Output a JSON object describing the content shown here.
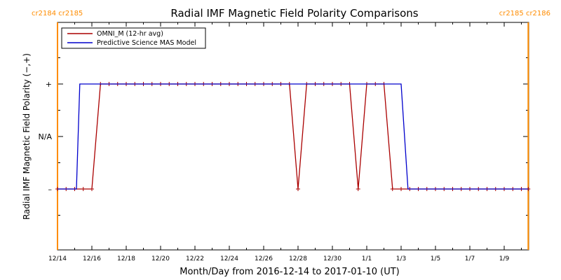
{
  "chart_data": {
    "type": "line",
    "title": "Radial IMF Magnetic Field Polarity Comparisons",
    "xlabel": "Month/Day from 2016-12-14 to 2017-01-10 (UT)",
    "ylabel": "Radial IMF Magnetic Field Polarity (−,+)",
    "x_unit": "days since 2016-12-14 00:00 UT",
    "xlim": [
      0,
      27.5
    ],
    "ylim": [
      -1.5,
      1.5
    ],
    "x_ticks": [
      {
        "x": 0,
        "label": "12/14"
      },
      {
        "x": 2,
        "label": "12/16"
      },
      {
        "x": 4,
        "label": "12/18"
      },
      {
        "x": 6,
        "label": "12/20"
      },
      {
        "x": 8,
        "label": "12/22"
      },
      {
        "x": 10,
        "label": "12/24"
      },
      {
        "x": 12,
        "label": "12/26"
      },
      {
        "x": 14,
        "label": "12/28"
      },
      {
        "x": 16,
        "label": "12/30"
      },
      {
        "x": 18,
        "label": "1/1"
      },
      {
        "x": 20,
        "label": "1/3"
      },
      {
        "x": 22,
        "label": "1/5"
      },
      {
        "x": 24,
        "label": "1/7"
      },
      {
        "x": 26,
        "label": "1/9"
      }
    ],
    "y_ticks": [
      {
        "y": 1,
        "label": "+"
      },
      {
        "y": 0,
        "label": "N/A"
      },
      {
        "y": -1,
        "label": "–"
      }
    ],
    "legend": {
      "position": "top-left",
      "entries": [
        {
          "label": "OMNI_M (12-hr avg)",
          "color": "#aa0000"
        },
        {
          "label": "Predictive Science MAS Model",
          "color": "#0000cc"
        }
      ]
    },
    "carrington_markers": [
      {
        "x": 0,
        "label": "cr2184 cr2185",
        "side": "left",
        "color": "#ff8c00"
      },
      {
        "x": 27.4,
        "label": "cr2185 cr2186",
        "side": "right",
        "color": "#ff8c00"
      }
    ],
    "series": [
      {
        "name": "OMNI_M (12-hr avg)",
        "color": "#aa0000",
        "markers": true,
        "x": [
          0,
          0.5,
          1.0,
          1.5,
          2.0,
          2.5,
          3.0,
          3.5,
          4.0,
          4.5,
          5.0,
          5.5,
          6.0,
          6.5,
          7.0,
          7.5,
          8.0,
          8.5,
          9.0,
          9.5,
          10.0,
          10.5,
          11.0,
          11.5,
          12.0,
          12.5,
          13.0,
          13.5,
          14.0,
          14.5,
          15.0,
          15.5,
          16.0,
          16.5,
          17.0,
          17.5,
          18.0,
          18.5,
          19.0,
          19.5,
          20.0,
          20.5,
          21.0,
          21.5,
          22.0,
          22.5,
          23.0,
          23.5,
          24.0,
          24.5,
          25.0,
          25.5,
          26.0,
          26.5,
          27.0,
          27.4
        ],
        "values": [
          -1,
          -1,
          -1,
          -1,
          -1,
          1,
          1,
          1,
          1,
          1,
          1,
          1,
          1,
          1,
          1,
          1,
          1,
          1,
          1,
          1,
          1,
          1,
          1,
          1,
          1,
          1,
          1,
          1,
          -1,
          1,
          1,
          1,
          1,
          1,
          1,
          -1,
          1,
          1,
          1,
          -1,
          -1,
          -1,
          -1,
          -1,
          -1,
          -1,
          -1,
          -1,
          -1,
          -1,
          -1,
          -1,
          -1,
          -1,
          -1,
          -1
        ]
      },
      {
        "name": "Predictive Science MAS Model",
        "color": "#0000cc",
        "markers": false,
        "x": [
          0,
          1.1,
          1.3,
          20.0,
          20.4,
          27.4
        ],
        "values": [
          -1,
          -1,
          1,
          1,
          -1,
          -1
        ]
      }
    ]
  }
}
